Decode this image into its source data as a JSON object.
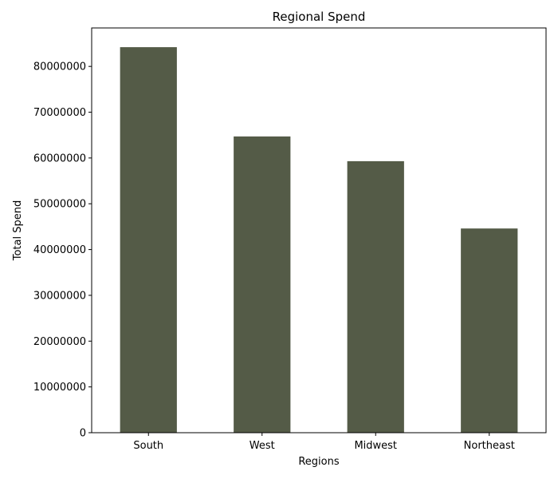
{
  "chart_data": {
    "type": "bar",
    "title": "Regional Spend",
    "xlabel": "Regions",
    "ylabel": "Total Spend",
    "categories": [
      "South",
      "West",
      "Midwest",
      "Northeast"
    ],
    "values": [
      84200000,
      64700000,
      59300000,
      44600000
    ],
    "ylim": [
      0,
      88400000
    ],
    "yticks": [
      0,
      10000000,
      20000000,
      30000000,
      40000000,
      50000000,
      60000000,
      70000000,
      80000000
    ],
    "bar_color": "#545b47",
    "grid": false,
    "legend": "none"
  }
}
